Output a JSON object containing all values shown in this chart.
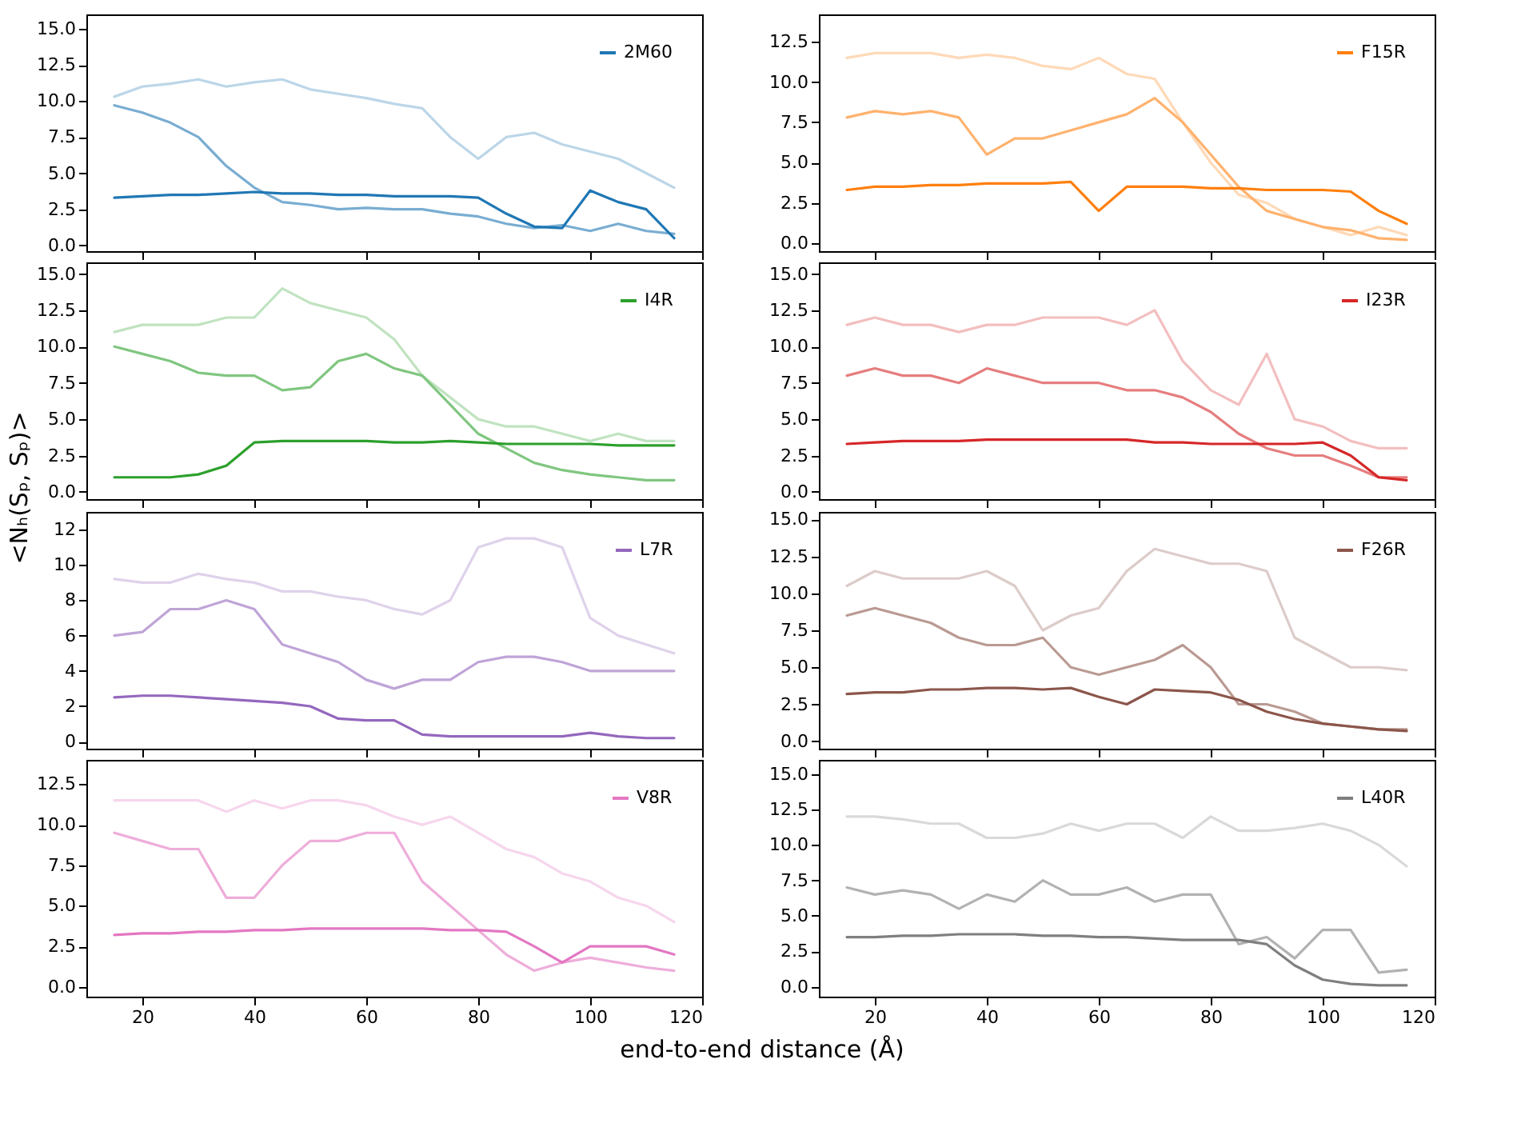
{
  "chart_data": [
    {
      "type": "line",
      "annotations": [
        "<Nₕ(Sₚ, Sₚ)>"
      ],
      "x": [
        15,
        20,
        25,
        30,
        35,
        40,
        45,
        50,
        55,
        60,
        65,
        70,
        75,
        80,
        85,
        90,
        95,
        100,
        105,
        110,
        115
      ],
      "xlim": [
        10,
        120
      ],
      "xticks": [
        20,
        40,
        60,
        80,
        100,
        120
      ],
      "ylim": [
        -0.4,
        16
      ],
      "yticks": [
        {
          "value": 0,
          "label": "0.0"
        },
        2.5,
        {
          "value": 5,
          "label": "5.0"
        },
        7.5,
        {
          "value": 10,
          "label": "10.0"
        },
        12.5,
        {
          "value": 15,
          "label": "15.0"
        }
      ],
      "tick_labels": "y",
      "legend": "top right",
      "grid": false,
      "series": [
        {
          "color": "#bcd6e8",
          "values": [
            10.3,
            11.0,
            11.2,
            11.5,
            11.0,
            11.3,
            11.5,
            10.8,
            10.5,
            10.2,
            9.8,
            9.5,
            7.5,
            6.0,
            7.5,
            7.8,
            7.0,
            6.5,
            6.0,
            5.0,
            4.0
          ]
        },
        {
          "color": "#79add2",
          "values": [
            9.7,
            9.2,
            8.5,
            7.5,
            5.5,
            4.0,
            3.0,
            2.8,
            2.5,
            2.6,
            2.5,
            2.5,
            2.2,
            2.0,
            1.5,
            1.2,
            1.4,
            1.0,
            1.5,
            1.0,
            0.8
          ]
        },
        {
          "name": "2M60",
          "color": "#1f77b4",
          "values": [
            3.3,
            3.4,
            3.5,
            3.5,
            3.6,
            3.7,
            3.6,
            3.6,
            3.5,
            3.5,
            3.4,
            3.4,
            3.4,
            3.3,
            2.2,
            1.3,
            1.2,
            3.8,
            3.0,
            2.5,
            0.5
          ]
        }
      ]
    },
    {
      "type": "line",
      "x": [
        15,
        20,
        25,
        30,
        35,
        40,
        45,
        50,
        55,
        60,
        65,
        70,
        75,
        80,
        85,
        90,
        95,
        100,
        105,
        110,
        115
      ],
      "xlim": [
        10,
        120
      ],
      "xticks": [
        20,
        40,
        60,
        80,
        100,
        120
      ],
      "ylim": [
        -0.5,
        14.2
      ],
      "yticks": [
        {
          "value": 0,
          "label": "0.0"
        },
        2.5,
        {
          "value": 5,
          "label": "5.0"
        },
        7.5,
        {
          "value": 10,
          "label": "10.0"
        },
        12.5
      ],
      "tick_labels": "y",
      "legend": "top right",
      "grid": false,
      "series": [
        {
          "color": "#ffd9b7",
          "values": [
            11.5,
            11.8,
            11.8,
            11.8,
            11.5,
            11.7,
            11.5,
            11.0,
            10.8,
            11.5,
            10.5,
            10.2,
            7.5,
            5.0,
            3.0,
            2.5,
            1.5,
            1.0,
            0.5,
            1.0,
            0.5
          ]
        },
        {
          "color": "#ffb26e",
          "values": [
            7.8,
            8.2,
            8.0,
            8.2,
            7.8,
            5.5,
            6.5,
            6.5,
            7.0,
            7.5,
            8.0,
            9.0,
            7.5,
            5.5,
            3.5,
            2.0,
            1.5,
            1.0,
            0.8,
            0.3,
            0.2
          ]
        },
        {
          "name": "F15R",
          "color": "#ff7f0e",
          "values": [
            3.3,
            3.5,
            3.5,
            3.6,
            3.6,
            3.7,
            3.7,
            3.7,
            3.8,
            2.0,
            3.5,
            3.5,
            3.5,
            3.4,
            3.4,
            3.3,
            3.3,
            3.3,
            3.2,
            2.0,
            1.2
          ]
        }
      ]
    },
    {
      "type": "line",
      "x": [
        15,
        20,
        25,
        30,
        35,
        40,
        45,
        50,
        55,
        60,
        65,
        70,
        75,
        80,
        85,
        90,
        95,
        100,
        105,
        110,
        115
      ],
      "xlim": [
        10,
        120
      ],
      "xticks": [
        20,
        40,
        60,
        80,
        100,
        120
      ],
      "ylim": [
        -0.5,
        15.8
      ],
      "yticks": [
        {
          "value": 0,
          "label": "0.0"
        },
        2.5,
        {
          "value": 5,
          "label": "5.0"
        },
        7.5,
        {
          "value": 10,
          "label": "10.0"
        },
        12.5,
        {
          "value": 15,
          "label": "15.0"
        }
      ],
      "tick_labels": "y",
      "legend": "top right",
      "grid": false,
      "series": [
        {
          "color": "#c0e3c0",
          "values": [
            11.0,
            11.5,
            11.5,
            11.5,
            12.0,
            12.0,
            14.0,
            13.0,
            12.5,
            12.0,
            10.5,
            8.0,
            6.5,
            5.0,
            4.5,
            4.5,
            4.0,
            3.5,
            4.0,
            3.5,
            3.5
          ]
        },
        {
          "color": "#80c680",
          "values": [
            10.0,
            9.5,
            9.0,
            8.2,
            8.0,
            8.0,
            7.0,
            7.2,
            9.0,
            9.5,
            8.5,
            8.0,
            6.0,
            4.0,
            3.0,
            2.0,
            1.5,
            1.2,
            1.0,
            0.8,
            0.8
          ]
        },
        {
          "name": "I4R",
          "color": "#2ca02c",
          "values": [
            1.0,
            1.0,
            1.0,
            1.2,
            1.8,
            3.4,
            3.5,
            3.5,
            3.5,
            3.5,
            3.4,
            3.4,
            3.5,
            3.4,
            3.3,
            3.3,
            3.3,
            3.3,
            3.2,
            3.2,
            3.2
          ]
        }
      ]
    },
    {
      "type": "line",
      "x": [
        15,
        20,
        25,
        30,
        35,
        40,
        45,
        50,
        55,
        60,
        65,
        70,
        75,
        80,
        85,
        90,
        95,
        100,
        105,
        110,
        115
      ],
      "xlim": [
        10,
        120
      ],
      "xticks": [
        20,
        40,
        60,
        80,
        100,
        120
      ],
      "ylim": [
        -0.5,
        15.8
      ],
      "yticks": [
        {
          "value": 0,
          "label": "0.0"
        },
        2.5,
        {
          "value": 5,
          "label": "5.0"
        },
        7.5,
        {
          "value": 10,
          "label": "10.0"
        },
        12.5,
        {
          "value": 15,
          "label": "15.0"
        }
      ],
      "tick_labels": "y",
      "legend": "top right",
      "grid": false,
      "series": [
        {
          "color": "#f3bebf",
          "values": [
            11.5,
            12.0,
            11.5,
            11.5,
            11.0,
            11.5,
            11.5,
            12.0,
            12.0,
            12.0,
            11.5,
            12.5,
            9.0,
            7.0,
            6.0,
            9.5,
            5.0,
            4.5,
            3.5,
            3.0,
            3.0
          ]
        },
        {
          "color": "#e67d7e",
          "values": [
            8.0,
            8.5,
            8.0,
            8.0,
            7.5,
            8.5,
            8.0,
            7.5,
            7.5,
            7.5,
            7.0,
            7.0,
            6.5,
            5.5,
            4.0,
            3.0,
            2.5,
            2.5,
            1.8,
            1.0,
            1.0
          ]
        },
        {
          "name": "I23R",
          "color": "#d62728",
          "values": [
            3.3,
            3.4,
            3.5,
            3.5,
            3.5,
            3.6,
            3.6,
            3.6,
            3.6,
            3.6,
            3.6,
            3.4,
            3.4,
            3.3,
            3.3,
            3.3,
            3.3,
            3.4,
            2.5,
            1.0,
            0.8
          ]
        }
      ]
    },
    {
      "type": "line",
      "x": [
        15,
        20,
        25,
        30,
        35,
        40,
        45,
        50,
        55,
        60,
        65,
        70,
        75,
        80,
        85,
        90,
        95,
        100,
        105,
        110,
        115
      ],
      "xlim": [
        10,
        120
      ],
      "xticks": [
        20,
        40,
        60,
        80,
        100,
        120
      ],
      "ylim": [
        -0.4,
        13
      ],
      "yticks": [
        0,
        2,
        4,
        6,
        8,
        10,
        12
      ],
      "tick_labels": "y",
      "legend": "top right",
      "grid": false,
      "series": [
        {
          "color": "#dfd2eb",
          "values": [
            9.2,
            9.0,
            9.0,
            9.5,
            9.2,
            9.0,
            8.5,
            8.5,
            8.2,
            8.0,
            7.5,
            7.2,
            8.0,
            11.0,
            11.5,
            11.5,
            11.0,
            7.0,
            6.0,
            5.5,
            5.0
          ]
        },
        {
          "color": "#bfa4d7",
          "values": [
            6.0,
            6.2,
            7.5,
            7.5,
            8.0,
            7.5,
            5.5,
            5.0,
            4.5,
            3.5,
            3.0,
            3.5,
            3.5,
            4.5,
            4.8,
            4.8,
            4.5,
            4.0,
            4.0,
            4.0,
            4.0
          ]
        },
        {
          "name": "L7R",
          "color": "#9467bd",
          "values": [
            2.5,
            2.6,
            2.6,
            2.5,
            2.4,
            2.3,
            2.2,
            2.0,
            1.3,
            1.2,
            1.2,
            0.4,
            0.3,
            0.3,
            0.3,
            0.3,
            0.3,
            0.5,
            0.3,
            0.2,
            0.2
          ]
        }
      ]
    },
    {
      "type": "line",
      "x": [
        15,
        20,
        25,
        30,
        35,
        40,
        45,
        50,
        55,
        60,
        65,
        70,
        75,
        80,
        85,
        90,
        95,
        100,
        105,
        110,
        115
      ],
      "xlim": [
        10,
        120
      ],
      "xticks": [
        20,
        40,
        60,
        80,
        100,
        120
      ],
      "ylim": [
        -0.5,
        15.5
      ],
      "yticks": [
        {
          "value": 0,
          "label": "0.0"
        },
        2.5,
        {
          "value": 5,
          "label": "5.0"
        },
        7.5,
        {
          "value": 10,
          "label": "10.0"
        },
        12.5,
        {
          "value": 15,
          "label": "15.0"
        }
      ],
      "tick_labels": "y",
      "legend": "top right",
      "grid": false,
      "series": [
        {
          "color": "#dcccc9",
          "values": [
            10.5,
            11.5,
            11.0,
            11.0,
            11.0,
            11.5,
            10.5,
            7.5,
            8.5,
            9.0,
            11.5,
            13.0,
            12.5,
            12.0,
            12.0,
            11.5,
            7.0,
            6.0,
            5.0,
            5.0,
            4.8
          ]
        },
        {
          "color": "#ba9a93",
          "values": [
            8.5,
            9.0,
            8.5,
            8.0,
            7.0,
            6.5,
            6.5,
            7.0,
            5.0,
            4.5,
            5.0,
            5.5,
            6.5,
            5.0,
            2.5,
            2.5,
            2.0,
            1.2,
            1.0,
            0.8,
            0.8
          ]
        },
        {
          "name": "F26R",
          "color": "#8c564b",
          "values": [
            3.2,
            3.3,
            3.3,
            3.5,
            3.5,
            3.6,
            3.6,
            3.5,
            3.6,
            3.0,
            2.5,
            3.5,
            3.4,
            3.3,
            2.8,
            2.0,
            1.5,
            1.2,
            1.0,
            0.8,
            0.7
          ]
        }
      ]
    },
    {
      "type": "line",
      "annotations": [
        "end-to-end distance (Å)"
      ],
      "x": [
        15,
        20,
        25,
        30,
        35,
        40,
        45,
        50,
        55,
        60,
        65,
        70,
        75,
        80,
        85,
        90,
        95,
        100,
        105,
        110,
        115
      ],
      "xlim": [
        10,
        120
      ],
      "xticks": [
        20,
        40,
        60,
        80,
        100,
        120
      ],
      "ylim": [
        -0.6,
        14
      ],
      "yticks": [
        {
          "value": 0,
          "label": "0.0"
        },
        2.5,
        {
          "value": 5,
          "label": "5.0"
        },
        7.5,
        {
          "value": 10,
          "label": "10.0"
        },
        12.5
      ],
      "legend": "top right",
      "grid": false,
      "series": [
        {
          "color": "#f6d6ed",
          "values": [
            11.5,
            11.5,
            11.5,
            11.5,
            10.8,
            11.5,
            11.0,
            11.5,
            11.5,
            11.2,
            10.5,
            10.0,
            10.5,
            9.5,
            8.5,
            8.0,
            7.0,
            6.5,
            5.5,
            5.0,
            4.0
          ]
        },
        {
          "color": "#eeadda",
          "values": [
            9.5,
            9.0,
            8.5,
            8.5,
            5.5,
            5.5,
            7.5,
            9.0,
            9.0,
            9.5,
            9.5,
            6.5,
            5.0,
            3.5,
            2.0,
            1.0,
            1.5,
            1.8,
            1.5,
            1.2,
            1.0
          ]
        },
        {
          "name": "V8R",
          "color": "#e377c2",
          "values": [
            3.2,
            3.3,
            3.3,
            3.4,
            3.4,
            3.5,
            3.5,
            3.6,
            3.6,
            3.6,
            3.6,
            3.6,
            3.5,
            3.5,
            3.4,
            2.5,
            1.5,
            2.5,
            2.5,
            2.5,
            2.0
          ]
        }
      ]
    },
    {
      "type": "line",
      "x": [
        15,
        20,
        25,
        30,
        35,
        40,
        45,
        50,
        55,
        60,
        65,
        70,
        75,
        80,
        85,
        90,
        95,
        100,
        105,
        110,
        115
      ],
      "xlim": [
        10,
        120
      ],
      "xticks": [
        20,
        40,
        60,
        80,
        100,
        120
      ],
      "ylim": [
        -0.7,
        16
      ],
      "yticks": [
        {
          "value": 0,
          "label": "0.0"
        },
        2.5,
        {
          "value": 5,
          "label": "5.0"
        },
        7.5,
        {
          "value": 10,
          "label": "10.0"
        },
        12.5,
        {
          "value": 15,
          "label": "15.0"
        }
      ],
      "legend": "top right",
      "grid": false,
      "series": [
        {
          "color": "#d9d9d9",
          "values": [
            12.0,
            12.0,
            11.8,
            11.5,
            11.5,
            10.5,
            10.5,
            10.8,
            11.5,
            11.0,
            11.5,
            11.5,
            10.5,
            12.0,
            11.0,
            11.0,
            11.2,
            11.5,
            11.0,
            10.0,
            8.5
          ]
        },
        {
          "color": "#b2b2b2",
          "values": [
            7.0,
            6.5,
            6.8,
            6.5,
            5.5,
            6.5,
            6.0,
            7.5,
            6.5,
            6.5,
            7.0,
            6.0,
            6.5,
            6.5,
            3.0,
            3.5,
            2.0,
            4.0,
            4.0,
            1.0,
            1.2
          ]
        },
        {
          "name": "L40R",
          "color": "#7f7f7f",
          "values": [
            3.5,
            3.5,
            3.6,
            3.6,
            3.7,
            3.7,
            3.7,
            3.6,
            3.6,
            3.5,
            3.5,
            3.4,
            3.3,
            3.3,
            3.3,
            3.0,
            1.5,
            0.5,
            0.2,
            0.1,
            0.1
          ]
        }
      ]
    }
  ]
}
